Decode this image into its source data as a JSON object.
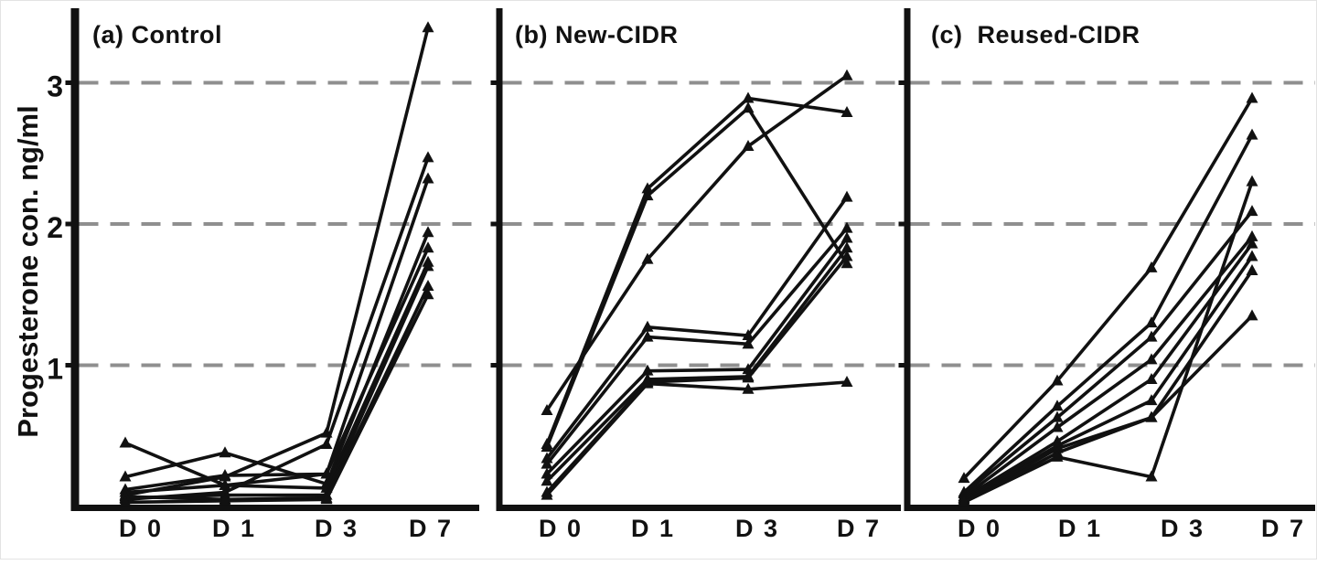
{
  "figure": {
    "ylabel": "Progesterone con. ng/ml",
    "background_color": "#ffffff",
    "line_color": "#111111",
    "axis_color": "#111111",
    "grid_color": "#8f8f8f",
    "x_tick_labels": [
      "D 0",
      "D 1",
      "D 3",
      "D 7"
    ],
    "y_tick_labels": [
      "1",
      "2",
      "3"
    ]
  },
  "chart_data": [
    {
      "type": "line",
      "panel": "a",
      "title": "(a) Control",
      "categories": [
        "D 0",
        "D 1",
        "D 3",
        "D 7"
      ],
      "xlabel": "",
      "ylabel": "Progesterone con. ng/ml",
      "ylim": [
        0,
        3.55
      ],
      "yticks": [
        1,
        2,
        3
      ],
      "grid": "horizontal-dashed",
      "legend": "none",
      "marker": "filled-triangle-up",
      "series": [
        {
          "name": "line-1",
          "values": [
            0.08,
            0.21,
            0.52,
            3.39
          ]
        },
        {
          "name": "line-2",
          "values": [
            0.05,
            0.1,
            0.44,
            2.47
          ]
        },
        {
          "name": "line-3",
          "values": [
            0.45,
            0.15,
            0.23,
            2.32
          ]
        },
        {
          "name": "line-4",
          "values": [
            0.21,
            0.38,
            0.16,
            1.94
          ]
        },
        {
          "name": "line-5",
          "values": [
            0.12,
            0.22,
            0.23,
            1.83
          ]
        },
        {
          "name": "line-6",
          "values": [
            0.1,
            0.15,
            0.13,
            1.73
          ]
        },
        {
          "name": "line-7",
          "values": [
            0.06,
            0.08,
            0.08,
            1.7
          ]
        },
        {
          "name": "line-8",
          "values": [
            0.07,
            0.05,
            0.06,
            1.56
          ]
        },
        {
          "name": "line-9",
          "values": [
            0.03,
            0.04,
            0.05,
            1.5
          ]
        }
      ]
    },
    {
      "type": "line",
      "panel": "b",
      "title": "(b) New-CIDR",
      "categories": [
        "D 0",
        "D 1",
        "D 3",
        "D 7"
      ],
      "xlabel": "",
      "ylabel": "Progesterone con. ng/ml",
      "ylim": [
        0,
        3.55
      ],
      "yticks": [
        1,
        2,
        3
      ],
      "grid": "horizontal-dashed",
      "legend": "none",
      "marker": "filled-triangle-up",
      "series": [
        {
          "name": "line-1",
          "values": [
            0.44,
            2.25,
            2.89,
            2.79
          ]
        },
        {
          "name": "line-2",
          "values": [
            0.42,
            2.2,
            2.82,
            1.72
          ]
        },
        {
          "name": "line-3",
          "values": [
            0.68,
            1.75,
            2.55,
            3.05
          ]
        },
        {
          "name": "line-4",
          "values": [
            0.34,
            1.27,
            1.21,
            2.19
          ]
        },
        {
          "name": "line-5",
          "values": [
            0.3,
            1.2,
            1.15,
            1.97
          ]
        },
        {
          "name": "line-6",
          "values": [
            0.23,
            0.96,
            0.97,
            1.9
          ]
        },
        {
          "name": "line-7",
          "values": [
            0.18,
            0.9,
            0.92,
            1.83
          ]
        },
        {
          "name": "line-8",
          "values": [
            0.1,
            0.88,
            0.91,
            1.77
          ]
        },
        {
          "name": "line-9",
          "values": [
            0.08,
            0.87,
            0.83,
            0.88
          ]
        }
      ]
    },
    {
      "type": "line",
      "panel": "c",
      "title": "(c)  Reused-CIDR",
      "categories": [
        "D 0",
        "D 1",
        "D 3",
        "D 7"
      ],
      "xlabel": "",
      "ylabel": "Progesterone con. ng/ml",
      "ylim": [
        0,
        3.55
      ],
      "yticks": [
        1,
        2,
        3
      ],
      "grid": "horizontal-dashed",
      "legend": "none",
      "marker": "filled-triangle-up",
      "series": [
        {
          "name": "line-1",
          "values": [
            0.2,
            0.89,
            1.69,
            2.89
          ]
        },
        {
          "name": "line-2",
          "values": [
            0.1,
            0.71,
            1.3,
            2.63
          ]
        },
        {
          "name": "line-3",
          "values": [
            0.09,
            0.63,
            1.2,
            2.09
          ]
        },
        {
          "name": "line-4",
          "values": [
            0.07,
            0.56,
            1.04,
            1.91
          ]
        },
        {
          "name": "line-5",
          "values": [
            0.06,
            0.46,
            0.9,
            1.86
          ]
        },
        {
          "name": "line-6",
          "values": [
            0.05,
            0.43,
            0.75,
            1.77
          ]
        },
        {
          "name": "line-7",
          "values": [
            0.04,
            0.41,
            0.63,
            1.67
          ]
        },
        {
          "name": "line-8",
          "values": [
            0.03,
            0.38,
            0.63,
            1.35
          ]
        },
        {
          "name": "line-9",
          "values": [
            0.03,
            0.35,
            0.21,
            2.3
          ]
        }
      ]
    }
  ]
}
